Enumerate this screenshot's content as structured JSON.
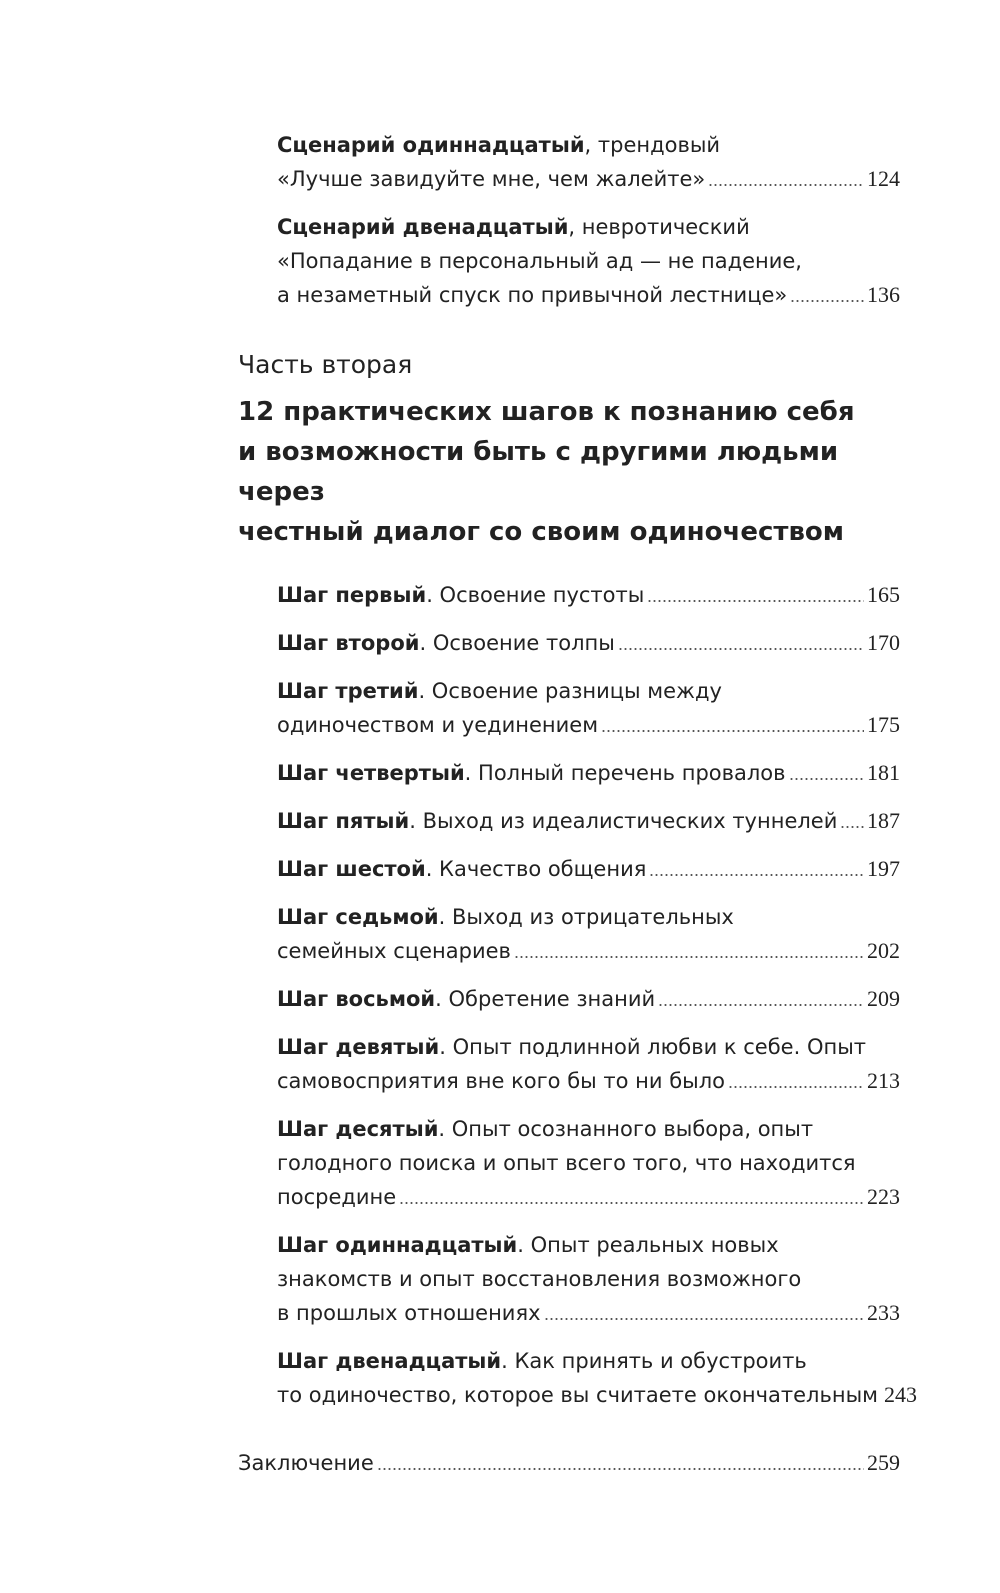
{
  "entries_top": [
    {
      "bold": "Сценарий одиннадцатый",
      "lines": [
        ", трендовый",
        "«Лучше завидуйте мне, чем жалейте»"
      ],
      "page": "124"
    },
    {
      "bold": "Сценарий двенадцатый",
      "lines": [
        ", невротический",
        "«Попадание в персональный ад — не падение,",
        "а незаметный спуск по привычной лестнице»"
      ],
      "page": "136"
    }
  ],
  "part": {
    "label": "Часть вторая",
    "title_lines": [
      "12 практических шагов к познанию себя",
      "и возможности быть с другими людьми через",
      "честный диалог со своим одиночеством"
    ]
  },
  "steps": [
    {
      "bold": "Шаг первый",
      "lines": [
        ". Освоение пустоты"
      ],
      "page": "165"
    },
    {
      "bold": "Шаг второй",
      "lines": [
        ". Освоение толпы"
      ],
      "page": "170"
    },
    {
      "bold": "Шаг третий",
      "lines": [
        ". Освоение разницы между",
        "одиночеством и уединением"
      ],
      "page": "175"
    },
    {
      "bold": "Шаг четвертый",
      "lines": [
        ". Полный перечень провалов"
      ],
      "page": "181"
    },
    {
      "bold": "Шаг пятый",
      "lines": [
        ". Выход из идеалистических туннелей"
      ],
      "page": "187"
    },
    {
      "bold": "Шаг шестой",
      "lines": [
        ". Качество общения"
      ],
      "page": "197"
    },
    {
      "bold": "Шаг седьмой",
      "lines": [
        ". Выход из отрицательных",
        "семейных сценариев"
      ],
      "page": "202"
    },
    {
      "bold": "Шаг восьмой",
      "lines": [
        ". Обретение знаний"
      ],
      "page": "209"
    },
    {
      "bold": "Шаг девятый",
      "lines": [
        ". Опыт подлинной любви к себе. Опыт",
        "самовосприятия вне кого бы то ни было"
      ],
      "page": "213"
    },
    {
      "bold": "Шаг десятый",
      "lines": [
        ". Опыт осознанного выбора, опыт",
        "голодного поиска и опыт всего того, что находится",
        "посредине"
      ],
      "page": "223"
    },
    {
      "bold": "Шаг одиннадцатый",
      "lines": [
        ". Опыт реальных новых",
        "знакомств и опыт восстановления возможного",
        "в прошлых отношениях"
      ],
      "page": "233"
    },
    {
      "bold": "Шаг двенадцатый",
      "lines": [
        ". Как принять и обустроить",
        "то одиночество, которое вы считаете окончательным"
      ],
      "page": "243"
    }
  ],
  "conclusion": {
    "label": "Заключение",
    "page": "259"
  }
}
